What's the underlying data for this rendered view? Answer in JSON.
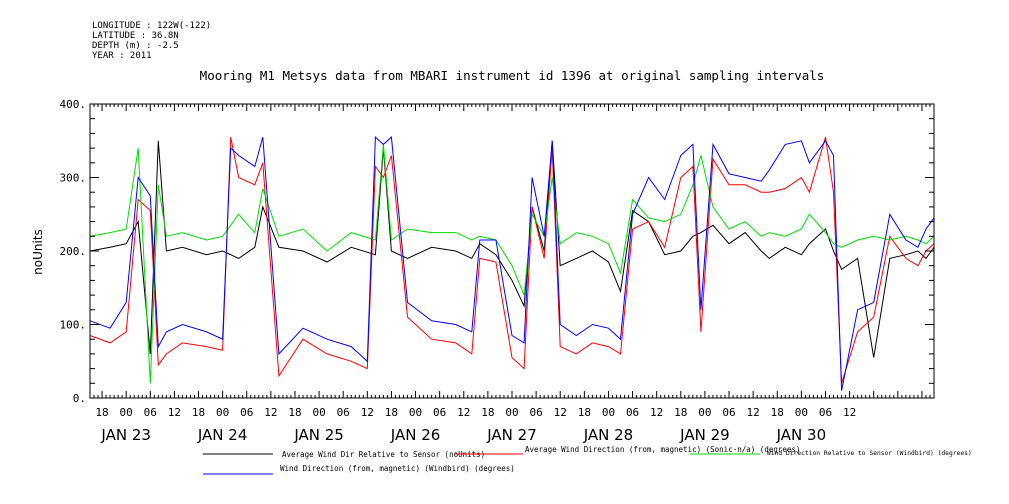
{
  "header": {
    "longitude": "LONGITUDE : 122W(-122)",
    "latitude": "LATITUDE : 36.8N",
    "depth": "DEPTH (m) : -2.5",
    "year": "YEAR : 2011"
  },
  "chart_data": {
    "type": "line",
    "title": "Mooring M1 Metsys data from MBARI instrument id 1396 at original sampling intervals",
    "xlabel": "",
    "ylabel": "noUnits",
    "ylim": [
      0,
      400
    ],
    "yticks": [
      0,
      100,
      200,
      300,
      400
    ],
    "xlim_hours": [
      -9,
      201
    ],
    "hour_ticks": [
      "18",
      "00",
      "06",
      "12",
      "18",
      "00",
      "06",
      "12",
      "18",
      "00",
      "06",
      "12",
      "18",
      "00",
      "06",
      "12",
      "18",
      "00",
      "06",
      "12",
      "18",
      "00",
      "06",
      "12",
      "18",
      "00",
      "06",
      "12",
      "18",
      "00",
      "06",
      "12"
    ],
    "date_labels": [
      "JAN 23",
      "JAN 24",
      "JAN 25",
      "JAN 26",
      "JAN 27",
      "JAN 28",
      "JAN 29",
      "JAN 30"
    ],
    "grid": false,
    "legend_placement": "bottom",
    "series": [
      {
        "name": "Average Wind Dir Relative to Sensor (noUnits)",
        "color": "#000000",
        "x": [
          -9,
          -4,
          0,
          3,
          6,
          8,
          10,
          14,
          20,
          24,
          28,
          32,
          34,
          38,
          44,
          50,
          56,
          62,
          64,
          66,
          70,
          76,
          82,
          86,
          88,
          92,
          96,
          99,
          101,
          104,
          106,
          108,
          112,
          116,
          120,
          123,
          126,
          130,
          134,
          138,
          141,
          143,
          146,
          150,
          154,
          158,
          160,
          164,
          168,
          170,
          174,
          176,
          178,
          182,
          186,
          190,
          194,
          197,
          199,
          201
        ],
        "y": [
          200,
          205,
          210,
          240,
          60,
          350,
          200,
          205,
          195,
          200,
          190,
          205,
          260,
          205,
          200,
          185,
          205,
          195,
          340,
          200,
          190,
          205,
          200,
          190,
          210,
          195,
          160,
          125,
          260,
          200,
          350,
          180,
          190,
          200,
          185,
          145,
          255,
          240,
          195,
          200,
          220,
          225,
          235,
          210,
          225,
          200,
          190,
          205,
          195,
          210,
          230,
          200,
          175,
          190,
          55,
          190,
          195,
          200,
          190,
          205
        ]
      },
      {
        "name": "Average Wind Direction (from, magnetic) (Sonic-n/a) (degrees)",
        "color": "#ff0000",
        "x": [
          -9,
          -4,
          0,
          3,
          6,
          8,
          10,
          14,
          20,
          24,
          26,
          28,
          32,
          34,
          38,
          44,
          50,
          56,
          60,
          62,
          64,
          66,
          70,
          76,
          82,
          86,
          88,
          92,
          96,
          99,
          101,
          104,
          106,
          108,
          112,
          116,
          120,
          123,
          126,
          130,
          134,
          138,
          141,
          143,
          146,
          150,
          154,
          158,
          160,
          164,
          168,
          170,
          174,
          176,
          178,
          182,
          186,
          190,
          194,
          197,
          199,
          201
        ],
        "y": [
          85,
          75,
          90,
          270,
          255,
          45,
          60,
          75,
          70,
          65,
          355,
          300,
          290,
          320,
          30,
          80,
          60,
          50,
          40,
          315,
          300,
          330,
          110,
          80,
          75,
          60,
          190,
          185,
          55,
          40,
          260,
          190,
          340,
          70,
          60,
          75,
          70,
          60,
          230,
          240,
          205,
          300,
          315,
          90,
          325,
          290,
          290,
          280,
          280,
          285,
          300,
          280,
          355,
          280,
          20,
          90,
          110,
          220,
          190,
          180,
          200,
          210
        ]
      },
      {
        "name": "Wind Direction Relative to Sensor (Windbird) (degrees)",
        "color": "#00dd00",
        "x": [
          -9,
          -4,
          0,
          3,
          6,
          8,
          10,
          14,
          20,
          24,
          28,
          32,
          34,
          38,
          44,
          50,
          56,
          62,
          64,
          66,
          70,
          76,
          82,
          86,
          88,
          92,
          96,
          99,
          101,
          104,
          106,
          108,
          112,
          116,
          120,
          123,
          126,
          130,
          134,
          138,
          141,
          143,
          146,
          150,
          154,
          158,
          160,
          164,
          168,
          170,
          174,
          176,
          178,
          182,
          186,
          190,
          194,
          197,
          199,
          201
        ],
        "y": [
          220,
          225,
          230,
          340,
          20,
          290,
          220,
          225,
          215,
          220,
          250,
          225,
          285,
          220,
          230,
          200,
          225,
          215,
          345,
          215,
          230,
          225,
          225,
          215,
          220,
          215,
          180,
          140,
          250,
          220,
          300,
          210,
          225,
          220,
          210,
          170,
          270,
          245,
          240,
          250,
          290,
          330,
          260,
          230,
          240,
          220,
          225,
          220,
          230,
          250,
          225,
          210,
          205,
          215,
          220,
          215,
          220,
          215,
          210,
          220
        ]
      },
      {
        "name": "Wind Direction (from, magnetic) (Windbird) (degrees)",
        "color": "#0000ff",
        "x": [
          -9,
          -4,
          0,
          3,
          6,
          8,
          10,
          14,
          20,
          24,
          26,
          28,
          32,
          34,
          38,
          44,
          50,
          56,
          60,
          62,
          64,
          66,
          70,
          76,
          82,
          86,
          88,
          92,
          96,
          99,
          101,
          104,
          106,
          108,
          112,
          116,
          120,
          123,
          126,
          130,
          134,
          138,
          141,
          143,
          146,
          150,
          154,
          158,
          160,
          164,
          168,
          170,
          174,
          176,
          178,
          182,
          186,
          190,
          194,
          197,
          199,
          201
        ],
        "y": [
          105,
          95,
          130,
          300,
          275,
          70,
          90,
          100,
          90,
          80,
          340,
          330,
          315,
          355,
          60,
          95,
          80,
          70,
          50,
          355,
          345,
          355,
          130,
          105,
          100,
          90,
          215,
          215,
          85,
          75,
          300,
          220,
          350,
          100,
          85,
          100,
          95,
          80,
          250,
          300,
          270,
          330,
          345,
          120,
          345,
          305,
          300,
          295,
          310,
          345,
          350,
          320,
          350,
          330,
          10,
          120,
          130,
          250,
          215,
          205,
          230,
          245
        ]
      }
    ]
  }
}
